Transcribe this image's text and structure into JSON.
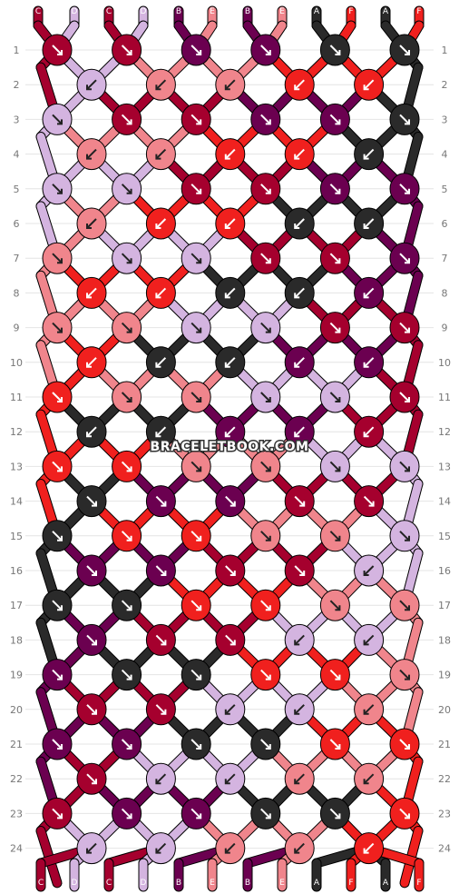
{
  "watermark": "BRACELETBOOK.COM",
  "colors": {
    "C": "#a5002e",
    "D": "#d4b4e0",
    "B": "#6b0050",
    "E": "#f0858c",
    "A": "#2a2a2a",
    "F": "#f0201e"
  },
  "strands_top": [
    "C",
    "D",
    "C",
    "D",
    "B",
    "E",
    "B",
    "E",
    "A",
    "F",
    "A",
    "F"
  ],
  "strands_bottom": [
    "C",
    "D",
    "C",
    "D",
    "B",
    "E",
    "B",
    "E",
    "A",
    "F",
    "A",
    "F"
  ],
  "row_labels": [
    "1",
    "2",
    "3",
    "4",
    "5",
    "6",
    "7",
    "8",
    "9",
    "10",
    "11",
    "12",
    "13",
    "14",
    "15",
    "16",
    "17",
    "18",
    "19",
    "20",
    "21",
    "22",
    "23",
    "24"
  ],
  "knots": [
    [
      {
        "c": "C",
        "d": "right"
      },
      {
        "c": "C",
        "d": "right"
      },
      {
        "c": "B",
        "d": "right"
      },
      {
        "c": "B",
        "d": "right"
      },
      {
        "c": "A",
        "d": "right"
      },
      {
        "c": "A",
        "d": "right"
      }
    ],
    [
      {
        "c": "D",
        "d": "left"
      },
      {
        "c": "E",
        "d": "left"
      },
      {
        "c": "E",
        "d": "left"
      },
      {
        "c": "F",
        "d": "left"
      },
      {
        "c": "F",
        "d": "left"
      }
    ],
    [
      {
        "c": "D",
        "d": "right"
      },
      {
        "c": "C",
        "d": "right"
      },
      {
        "c": "C",
        "d": "right"
      },
      {
        "c": "B",
        "d": "right"
      },
      {
        "c": "B",
        "d": "right"
      },
      {
        "c": "A",
        "d": "right"
      }
    ],
    [
      {
        "c": "E",
        "d": "left"
      },
      {
        "c": "E",
        "d": "left"
      },
      {
        "c": "F",
        "d": "left"
      },
      {
        "c": "F",
        "d": "left"
      },
      {
        "c": "A",
        "d": "left"
      }
    ],
    [
      {
        "c": "D",
        "d": "right"
      },
      {
        "c": "D",
        "d": "right"
      },
      {
        "c": "C",
        "d": "right"
      },
      {
        "c": "C",
        "d": "right"
      },
      {
        "c": "B",
        "d": "right"
      },
      {
        "c": "B",
        "d": "right"
      }
    ],
    [
      {
        "c": "E",
        "d": "left"
      },
      {
        "c": "F",
        "d": "left"
      },
      {
        "c": "F",
        "d": "left"
      },
      {
        "c": "A",
        "d": "left"
      },
      {
        "c": "A",
        "d": "left"
      }
    ],
    [
      {
        "c": "E",
        "d": "right"
      },
      {
        "c": "D",
        "d": "right"
      },
      {
        "c": "D",
        "d": "right"
      },
      {
        "c": "C",
        "d": "right"
      },
      {
        "c": "C",
        "d": "right"
      },
      {
        "c": "B",
        "d": "right"
      }
    ],
    [
      {
        "c": "F",
        "d": "left"
      },
      {
        "c": "F",
        "d": "left"
      },
      {
        "c": "A",
        "d": "left"
      },
      {
        "c": "A",
        "d": "left"
      },
      {
        "c": "B",
        "d": "left"
      }
    ],
    [
      {
        "c": "E",
        "d": "right"
      },
      {
        "c": "E",
        "d": "right"
      },
      {
        "c": "D",
        "d": "right"
      },
      {
        "c": "D",
        "d": "right"
      },
      {
        "c": "C",
        "d": "right"
      },
      {
        "c": "C",
        "d": "right"
      }
    ],
    [
      {
        "c": "F",
        "d": "left"
      },
      {
        "c": "A",
        "d": "left"
      },
      {
        "c": "A",
        "d": "left"
      },
      {
        "c": "B",
        "d": "left"
      },
      {
        "c": "B",
        "d": "left"
      }
    ],
    [
      {
        "c": "F",
        "d": "right"
      },
      {
        "c": "E",
        "d": "right"
      },
      {
        "c": "E",
        "d": "right"
      },
      {
        "c": "D",
        "d": "right"
      },
      {
        "c": "D",
        "d": "right"
      },
      {
        "c": "C",
        "d": "right"
      }
    ],
    [
      {
        "c": "A",
        "d": "left"
      },
      {
        "c": "A",
        "d": "left"
      },
      {
        "c": "B",
        "d": "left"
      },
      {
        "c": "B",
        "d": "left"
      },
      {
        "c": "C",
        "d": "left"
      }
    ],
    [
      {
        "c": "F",
        "d": "right"
      },
      {
        "c": "F",
        "d": "right"
      },
      {
        "c": "E",
        "d": "right"
      },
      {
        "c": "E",
        "d": "right"
      },
      {
        "c": "D",
        "d": "right"
      },
      {
        "c": "D",
        "d": "right"
      }
    ],
    [
      {
        "c": "A",
        "d": "right"
      },
      {
        "c": "B",
        "d": "right"
      },
      {
        "c": "B",
        "d": "right"
      },
      {
        "c": "C",
        "d": "right"
      },
      {
        "c": "C",
        "d": "right"
      }
    ],
    [
      {
        "c": "A",
        "d": "right"
      },
      {
        "c": "F",
        "d": "right"
      },
      {
        "c": "F",
        "d": "right"
      },
      {
        "c": "E",
        "d": "right"
      },
      {
        "c": "E",
        "d": "right"
      },
      {
        "c": "D",
        "d": "right"
      }
    ],
    [
      {
        "c": "B",
        "d": "right"
      },
      {
        "c": "B",
        "d": "right"
      },
      {
        "c": "C",
        "d": "right"
      },
      {
        "c": "C",
        "d": "right"
      },
      {
        "c": "D",
        "d": "left"
      }
    ],
    [
      {
        "c": "A",
        "d": "right"
      },
      {
        "c": "A",
        "d": "right"
      },
      {
        "c": "F",
        "d": "right"
      },
      {
        "c": "F",
        "d": "right"
      },
      {
        "c": "E",
        "d": "right"
      },
      {
        "c": "E",
        "d": "right"
      }
    ],
    [
      {
        "c": "B",
        "d": "right"
      },
      {
        "c": "C",
        "d": "right"
      },
      {
        "c": "C",
        "d": "right"
      },
      {
        "c": "D",
        "d": "left"
      },
      {
        "c": "D",
        "d": "left"
      }
    ],
    [
      {
        "c": "B",
        "d": "right"
      },
      {
        "c": "A",
        "d": "right"
      },
      {
        "c": "A",
        "d": "right"
      },
      {
        "c": "F",
        "d": "right"
      },
      {
        "c": "F",
        "d": "right"
      },
      {
        "c": "E",
        "d": "right"
      }
    ],
    [
      {
        "c": "C",
        "d": "right"
      },
      {
        "c": "C",
        "d": "right"
      },
      {
        "c": "D",
        "d": "left"
      },
      {
        "c": "D",
        "d": "left"
      },
      {
        "c": "E",
        "d": "left"
      }
    ],
    [
      {
        "c": "B",
        "d": "right"
      },
      {
        "c": "B",
        "d": "right"
      },
      {
        "c": "A",
        "d": "right"
      },
      {
        "c": "A",
        "d": "right"
      },
      {
        "c": "F",
        "d": "right"
      },
      {
        "c": "F",
        "d": "right"
      }
    ],
    [
      {
        "c": "C",
        "d": "right"
      },
      {
        "c": "D",
        "d": "left"
      },
      {
        "c": "D",
        "d": "left"
      },
      {
        "c": "E",
        "d": "left"
      },
      {
        "c": "E",
        "d": "left"
      }
    ],
    [
      {
        "c": "C",
        "d": "right"
      },
      {
        "c": "B",
        "d": "right"
      },
      {
        "c": "B",
        "d": "right"
      },
      {
        "c": "A",
        "d": "right"
      },
      {
        "c": "A",
        "d": "right"
      },
      {
        "c": "F",
        "d": "right"
      }
    ],
    [
      {
        "c": "D",
        "d": "left"
      },
      {
        "c": "D",
        "d": "left"
      },
      {
        "c": "E",
        "d": "left"
      },
      {
        "c": "E",
        "d": "left"
      },
      {
        "c": "F",
        "d": "left"
      }
    ]
  ]
}
